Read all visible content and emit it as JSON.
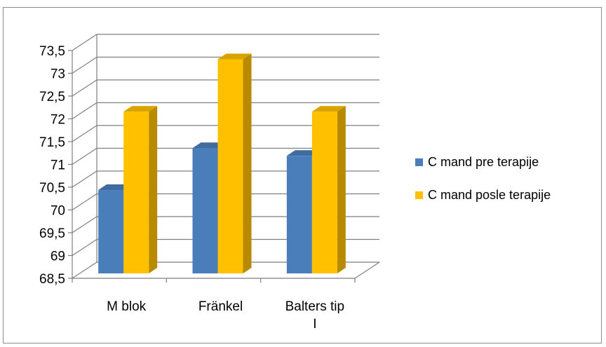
{
  "chart_data": {
    "type": "bar",
    "title": "",
    "xlabel": "",
    "ylabel": "",
    "categories": [
      [
        "M blok"
      ],
      [
        "Fränkel"
      ],
      [
        "Balters tip",
        "I"
      ]
    ],
    "series": [
      {
        "name": "C mand pre terapije",
        "values": [
          70.33,
          71.25,
          71.08
        ],
        "color": "#4a7ebb"
      },
      {
        "name": "C mand posle terapije",
        "values": [
          72.05,
          73.2,
          72.05
        ],
        "color": "#ffc000"
      }
    ],
    "ylim": [
      68.5,
      73.5
    ],
    "yticks": [
      "68,5",
      "69",
      "69,5",
      "70",
      "70,5",
      "71",
      "71,5",
      "72",
      "72,5",
      "73",
      "73,5"
    ],
    "grid": true,
    "legend_position": "right",
    "style": "3d-clustered-column"
  }
}
